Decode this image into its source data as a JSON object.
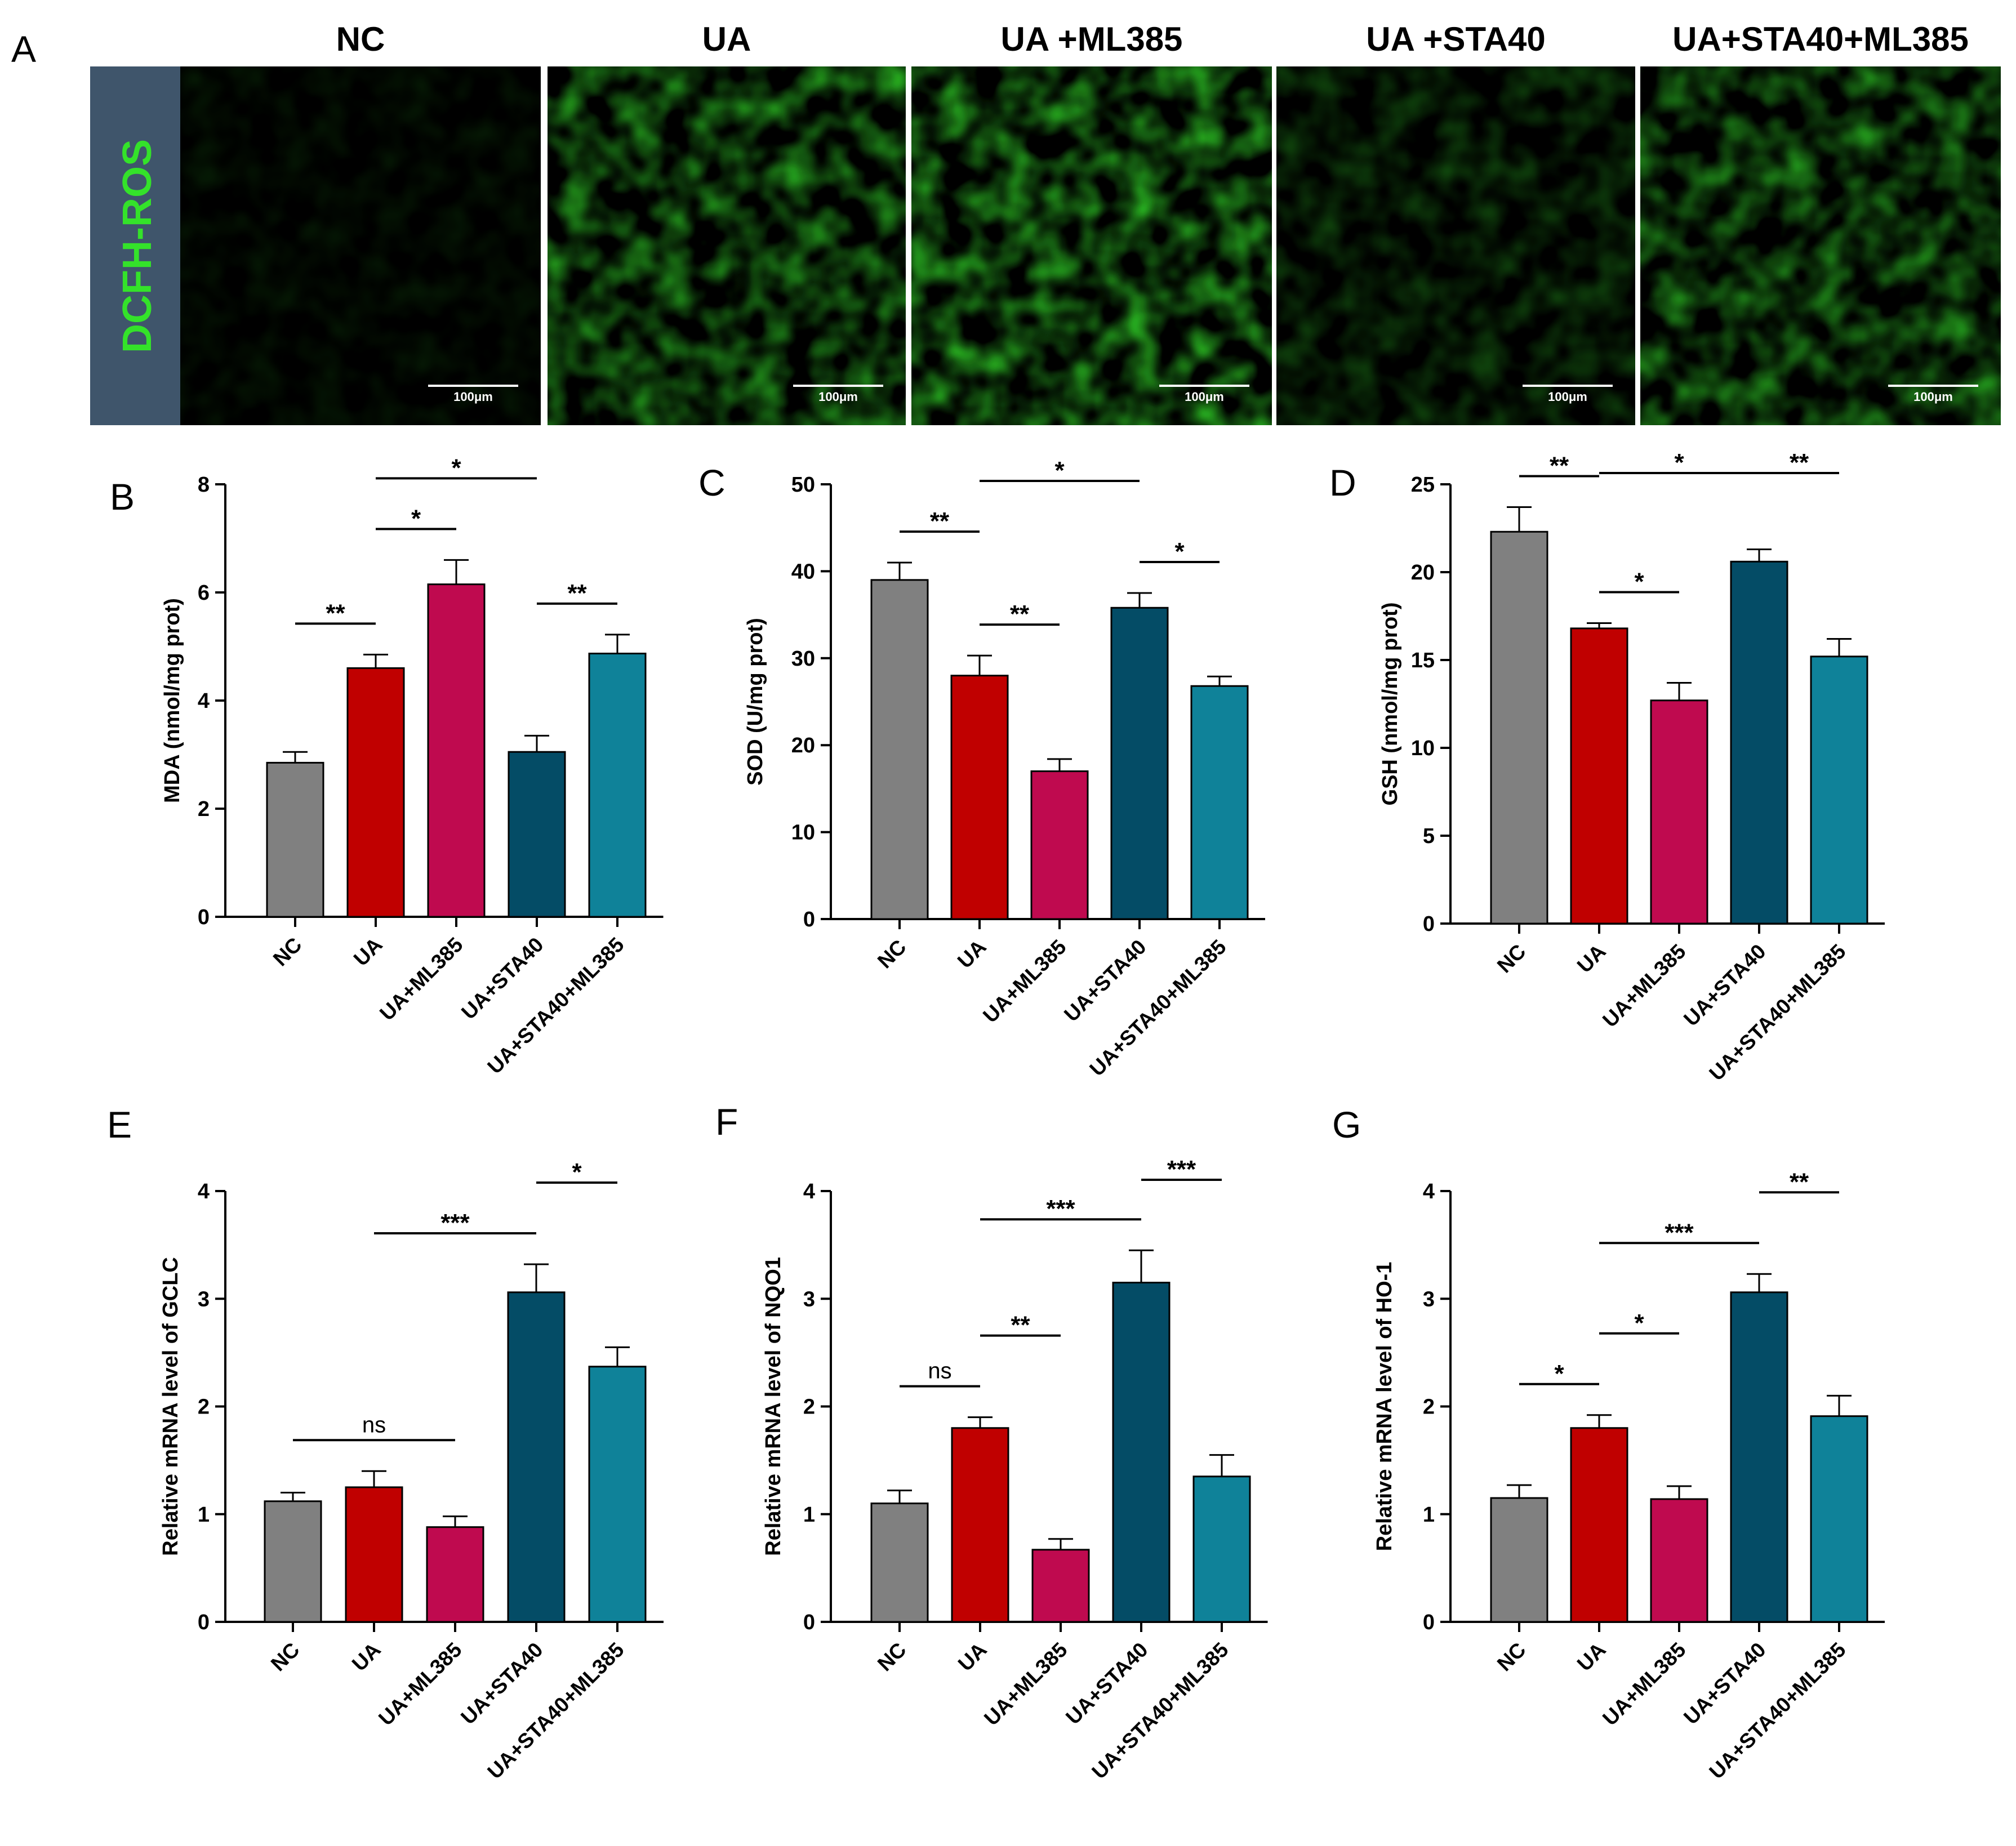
{
  "colors": {
    "NC": "#808080",
    "UA": "#c00000",
    "UA+ML385": "#bf0a4f",
    "UA+STA40": "#044c66",
    "UA+STA40+ML385": "#0f8299",
    "fluorescence": "#34e22a",
    "label_bg": "#3f556b"
  },
  "panel_a": {
    "letter": "A",
    "row_label": "DCFH-ROS",
    "groups": [
      "NC",
      "UA",
      "UA +ML385",
      "UA +STA40",
      "UA+STA40+ML385"
    ],
    "scale_bar_label": "100μm",
    "relative_intensity": [
      0.12,
      0.78,
      0.9,
      0.35,
      0.72
    ]
  },
  "chart_data": [
    {
      "panel": "B",
      "type": "bar",
      "categories": [
        "NC",
        "UA",
        "UA+ML385",
        "UA+STA40",
        "UA+STA40+ML385"
      ],
      "values": [
        2.85,
        4.6,
        6.15,
        3.05,
        4.87
      ],
      "errors": [
        0.2,
        0.25,
        0.45,
        0.3,
        0.35
      ],
      "ylabel": "MDA (nmol/mg prot)",
      "ylim": [
        0,
        8
      ],
      "yticks": [
        0,
        2,
        4,
        6,
        8
      ],
      "significance": [
        {
          "from": 0,
          "to": 1,
          "label": "**"
        },
        {
          "from": 1,
          "to": 2,
          "label": "*"
        },
        {
          "from": 1,
          "to": 3,
          "label": "*"
        },
        {
          "from": 3,
          "to": 4,
          "label": "**"
        }
      ]
    },
    {
      "panel": "C",
      "type": "bar",
      "categories": [
        "NC",
        "UA",
        "UA+ML385",
        "UA+STA40",
        "UA+STA40+ML385"
      ],
      "values": [
        39,
        28,
        17,
        35.8,
        26.8
      ],
      "errors": [
        2,
        2.3,
        1.4,
        1.7,
        1.1
      ],
      "ylabel": "SOD (U/mg prot)",
      "ylim": [
        0,
        50
      ],
      "yticks": [
        0,
        10,
        20,
        30,
        40,
        50
      ],
      "significance": [
        {
          "from": 0,
          "to": 1,
          "label": "**"
        },
        {
          "from": 1,
          "to": 2,
          "label": "**"
        },
        {
          "from": 1,
          "to": 3,
          "label": "*"
        },
        {
          "from": 3,
          "to": 4,
          "label": "*"
        }
      ]
    },
    {
      "panel": "D",
      "type": "bar",
      "categories": [
        "NC",
        "UA",
        "UA+ML385",
        "UA+STA40",
        "UA+STA40+ML385"
      ],
      "values": [
        22.3,
        16.8,
        12.7,
        20.6,
        15.2
      ],
      "errors": [
        1.4,
        0.3,
        1.0,
        0.7,
        1.0
      ],
      "ylabel": "GSH (nmol/mg prot)",
      "ylim": [
        0,
        25
      ],
      "yticks": [
        0,
        5,
        10,
        15,
        20,
        25
      ],
      "significance": [
        {
          "from": 0,
          "to": 1,
          "label": "**"
        },
        {
          "from": 1,
          "to": 2,
          "label": "*"
        },
        {
          "from": 1,
          "to": 3,
          "label": "*"
        },
        {
          "from": 3,
          "to": 4,
          "label": "**"
        }
      ]
    },
    {
      "panel": "E",
      "type": "bar",
      "categories": [
        "NC",
        "UA",
        "UA+ML385",
        "UA+STA40",
        "UA+STA40+ML385"
      ],
      "values": [
        1.12,
        1.25,
        0.88,
        3.06,
        2.37
      ],
      "errors": [
        0.08,
        0.15,
        0.1,
        0.26,
        0.18
      ],
      "ylabel": "Relative mRNA level of GCLC",
      "ylim": [
        0,
        4
      ],
      "yticks": [
        0,
        1,
        2,
        3,
        4
      ],
      "significance": [
        {
          "from": 0,
          "to": 2,
          "label": "ns"
        },
        {
          "from": 1,
          "to": 3,
          "label": "***"
        },
        {
          "from": 3,
          "to": 4,
          "label": "*"
        }
      ]
    },
    {
      "panel": "F",
      "type": "bar",
      "categories": [
        "NC",
        "UA",
        "UA+ML385",
        "UA+STA40",
        "UA+STA40+ML385"
      ],
      "values": [
        1.1,
        1.8,
        0.67,
        3.15,
        1.35
      ],
      "errors": [
        0.12,
        0.1,
        0.1,
        0.3,
        0.2
      ],
      "ylabel": "Relative mRNA level of NQO1",
      "ylim": [
        0,
        4
      ],
      "yticks": [
        0,
        1,
        2,
        3,
        4
      ],
      "significance": [
        {
          "from": 0,
          "to": 1,
          "label": "ns"
        },
        {
          "from": 1,
          "to": 2,
          "label": "**"
        },
        {
          "from": 1,
          "to": 3,
          "label": "***"
        },
        {
          "from": 3,
          "to": 4,
          "label": "***"
        }
      ]
    },
    {
      "panel": "G",
      "type": "bar",
      "categories": [
        "NC",
        "UA",
        "UA+ML385",
        "UA+STA40",
        "UA+STA40+ML385"
      ],
      "values": [
        1.15,
        1.8,
        1.14,
        3.06,
        1.91
      ],
      "errors": [
        0.12,
        0.12,
        0.12,
        0.17,
        0.19
      ],
      "ylabel": "Relative mRNA level of HO-1",
      "ylim": [
        0,
        4
      ],
      "yticks": [
        0,
        1,
        2,
        3,
        4
      ],
      "significance": [
        {
          "from": 0,
          "to": 1,
          "label": "*"
        },
        {
          "from": 1,
          "to": 2,
          "label": "*"
        },
        {
          "from": 1,
          "to": 3,
          "label": "***"
        },
        {
          "from": 3,
          "to": 4,
          "label": "**"
        }
      ]
    }
  ]
}
